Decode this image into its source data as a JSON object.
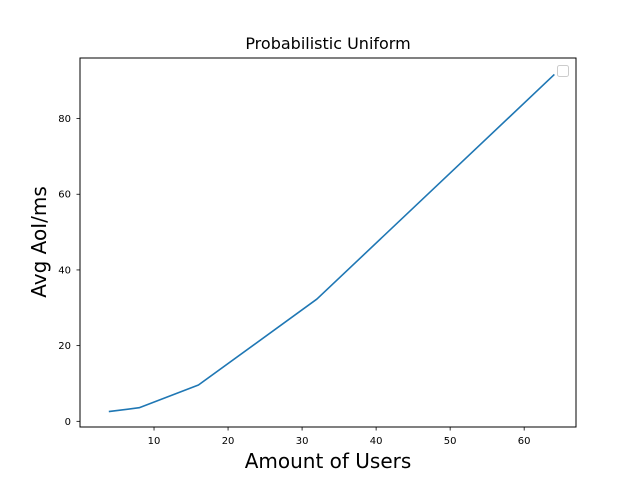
{
  "chart_data": {
    "type": "line",
    "title": "Probabilistic Uniform",
    "xlabel": "Amount of Users",
    "ylabel": "Avg AoI/ms",
    "xlim": [
      0.0,
      67.0
    ],
    "ylim": [
      -1.5,
      96.0
    ],
    "xticks": [
      10,
      20,
      30,
      40,
      50,
      60
    ],
    "yticks": [
      0,
      20,
      40,
      60,
      80
    ],
    "grid": false,
    "legend": "top-right",
    "series": [
      {
        "color": "#1f77b4",
        "x": [
          4,
          8,
          16,
          32,
          64
        ],
        "y": [
          2.6,
          3.6,
          9.6,
          32.3,
          91.5
        ]
      }
    ]
  }
}
